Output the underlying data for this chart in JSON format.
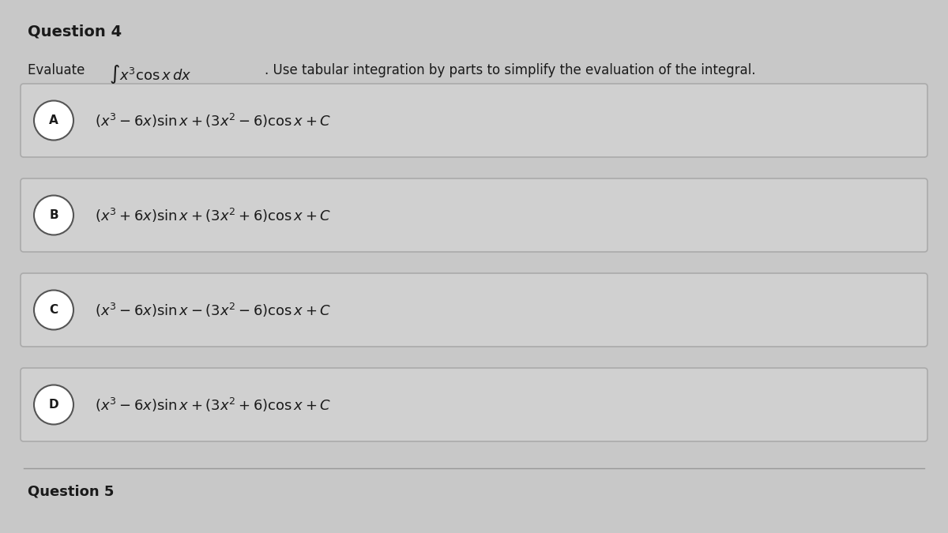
{
  "bg_color": "#c8c8c8",
  "header_text": "Question 4",
  "question_text": "Evaluate",
  "integral_text": "$\\int x^3 \\cos x\\, dx$",
  "question_suffix": ". Use tabular integration by parts to simplify the evaluation of the integral.",
  "options": [
    {
      "label": "A",
      "formula": "$(x^3 - 6x)\\sin x + (3x^2 - 6)\\cos x + C$"
    },
    {
      "label": "B",
      "formula": "$(x^3 + 6x)\\sin x + (3x^2 + 6)\\cos x + C$"
    },
    {
      "label": "C",
      "formula": "$(x^3 - 6x)\\sin x - (3x^2 - 6)\\cos x + C$"
    },
    {
      "label": "D",
      "formula": "$(x^3 - 6x)\\sin x + (3x^2 + 6)\\cos x + C$"
    }
  ],
  "footer_text": "Question 5",
  "option_box_color": "#d0d0d0",
  "option_box_edge_color": "#aaaaaa",
  "circle_color": "#ffffff",
  "circle_edge_color": "#555555",
  "text_color": "#1a1a1a",
  "header_color": "#b0b0b0"
}
